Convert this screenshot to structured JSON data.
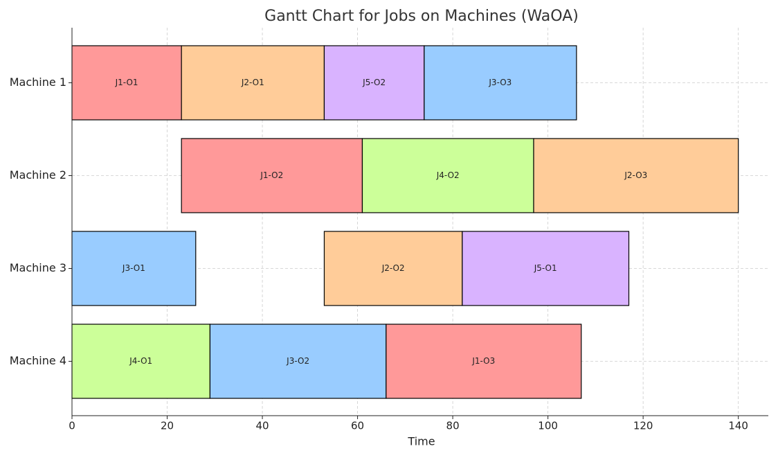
{
  "chart_data": {
    "type": "gantt",
    "title": "Gantt Chart for Jobs on Machines (WaOA)",
    "xlabel": "Time",
    "categories": [
      "Machine 1",
      "Machine 2",
      "Machine 3",
      "Machine 4"
    ],
    "xlim": [
      0,
      146.3
    ],
    "xticks": [
      0,
      20,
      40,
      60,
      80,
      100,
      120,
      140
    ],
    "grid": true,
    "tasks": [
      {
        "label": "J1-O1",
        "machine": "Machine 1",
        "start": 0,
        "end": 23,
        "color": "#ff9999"
      },
      {
        "label": "J2-O1",
        "machine": "Machine 1",
        "start": 23,
        "end": 53,
        "color": "#ffcc99"
      },
      {
        "label": "J5-O2",
        "machine": "Machine 1",
        "start": 53,
        "end": 74,
        "color": "#d9b3ff"
      },
      {
        "label": "J3-O3",
        "machine": "Machine 1",
        "start": 74,
        "end": 106,
        "color": "#99ccff"
      },
      {
        "label": "J1-O2",
        "machine": "Machine 2",
        "start": 23,
        "end": 61,
        "color": "#ff9999"
      },
      {
        "label": "J4-O2",
        "machine": "Machine 2",
        "start": 61,
        "end": 97,
        "color": "#ccff99"
      },
      {
        "label": "J2-O3",
        "machine": "Machine 2",
        "start": 97,
        "end": 140,
        "color": "#ffcc99"
      },
      {
        "label": "J3-O1",
        "machine": "Machine 3",
        "start": 0,
        "end": 26,
        "color": "#99ccff"
      },
      {
        "label": "J2-O2",
        "machine": "Machine 3",
        "start": 53,
        "end": 82,
        "color": "#ffcc99"
      },
      {
        "label": "J5-O1",
        "machine": "Machine 3",
        "start": 82,
        "end": 117,
        "color": "#d9b3ff"
      },
      {
        "label": "J4-O1",
        "machine": "Machine 4",
        "start": 0,
        "end": 29,
        "color": "#ccff99"
      },
      {
        "label": "J3-O2",
        "machine": "Machine 4",
        "start": 29,
        "end": 66,
        "color": "#99ccff"
      },
      {
        "label": "J1-O3",
        "machine": "Machine 4",
        "start": 66,
        "end": 107,
        "color": "#ff9999"
      }
    ]
  }
}
